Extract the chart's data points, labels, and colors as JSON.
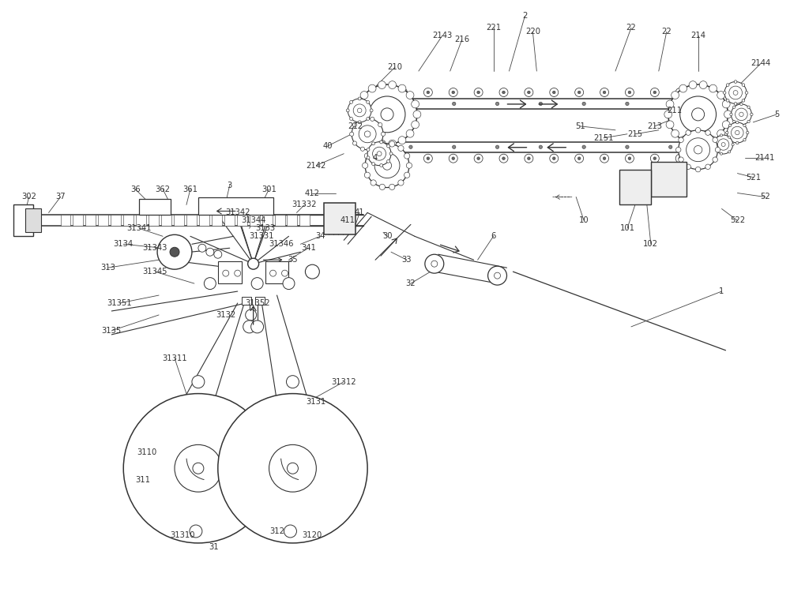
{
  "bg": "#ffffff",
  "lc": "#333333",
  "fs": 7.2,
  "figsize": [
    10.0,
    7.74
  ],
  "dpi": 100,
  "xlim": [
    0,
    100
  ],
  "ylim": [
    0,
    77.4
  ],
  "labels": [
    [
      66.5,
      75.5,
      "2"
    ],
    [
      62.5,
      74.0,
      "221"
    ],
    [
      67.5,
      73.5,
      "220"
    ],
    [
      56.0,
      73.0,
      "2143"
    ],
    [
      58.5,
      72.5,
      "216"
    ],
    [
      80.0,
      74.0,
      "22"
    ],
    [
      84.5,
      73.5,
      "22"
    ],
    [
      88.5,
      73.0,
      "214"
    ],
    [
      96.5,
      69.5,
      "2144"
    ],
    [
      98.5,
      63.0,
      "5"
    ],
    [
      97.0,
      57.5,
      "2141"
    ],
    [
      95.5,
      55.0,
      "521"
    ],
    [
      97.0,
      52.5,
      "52"
    ],
    [
      93.5,
      49.5,
      "522"
    ],
    [
      85.5,
      63.5,
      "211"
    ],
    [
      83.0,
      61.5,
      "213"
    ],
    [
      80.5,
      60.5,
      "215"
    ],
    [
      76.5,
      60.0,
      "2151"
    ],
    [
      73.5,
      61.5,
      "51"
    ],
    [
      50.0,
      69.0,
      "210"
    ],
    [
      45.0,
      61.5,
      "212"
    ],
    [
      41.5,
      59.0,
      "40"
    ],
    [
      40.0,
      56.5,
      "2142"
    ],
    [
      39.5,
      53.0,
      "412"
    ],
    [
      47.5,
      57.5,
      "4"
    ],
    [
      3.5,
      52.5,
      "302"
    ],
    [
      7.5,
      52.5,
      "37"
    ],
    [
      17.0,
      53.5,
      "36"
    ],
    [
      20.5,
      53.5,
      "362"
    ],
    [
      24.0,
      53.5,
      "361"
    ],
    [
      29.0,
      54.0,
      "3"
    ],
    [
      34.0,
      53.5,
      "301"
    ],
    [
      38.5,
      51.5,
      "31332"
    ],
    [
      30.0,
      50.5,
      "31342"
    ],
    [
      32.0,
      49.5,
      "31344"
    ],
    [
      33.5,
      48.5,
      "3133"
    ],
    [
      33.0,
      47.5,
      "31331"
    ],
    [
      35.5,
      46.5,
      "31346"
    ],
    [
      17.5,
      48.5,
      "31341"
    ],
    [
      15.5,
      46.5,
      "3134"
    ],
    [
      13.5,
      43.5,
      "313"
    ],
    [
      19.5,
      46.0,
      "31343"
    ],
    [
      19.5,
      43.0,
      "31345"
    ],
    [
      15.0,
      39.0,
      "31351"
    ],
    [
      14.0,
      35.5,
      "3135"
    ],
    [
      22.0,
      32.0,
      "31311"
    ],
    [
      18.5,
      20.0,
      "3110"
    ],
    [
      18.0,
      16.5,
      "311"
    ],
    [
      23.0,
      9.5,
      "31310"
    ],
    [
      27.0,
      8.0,
      "31"
    ],
    [
      35.0,
      10.0,
      "312"
    ],
    [
      39.5,
      9.5,
      "3120"
    ],
    [
      40.0,
      26.5,
      "3131"
    ],
    [
      43.5,
      29.0,
      "31312"
    ],
    [
      28.5,
      37.5,
      "3132"
    ],
    [
      32.5,
      39.0,
      "31352"
    ],
    [
      37.0,
      44.5,
      "35"
    ],
    [
      39.0,
      46.0,
      "341"
    ],
    [
      40.5,
      47.5,
      "34"
    ],
    [
      44.0,
      49.5,
      "411"
    ],
    [
      45.5,
      50.5,
      "41"
    ],
    [
      49.0,
      47.5,
      "30"
    ],
    [
      51.5,
      44.5,
      "33"
    ],
    [
      52.0,
      41.5,
      "32"
    ],
    [
      62.5,
      47.5,
      "6"
    ],
    [
      74.0,
      49.5,
      "10"
    ],
    [
      79.5,
      48.5,
      "101"
    ],
    [
      82.5,
      46.5,
      "102"
    ],
    [
      91.5,
      40.5,
      "1"
    ]
  ]
}
